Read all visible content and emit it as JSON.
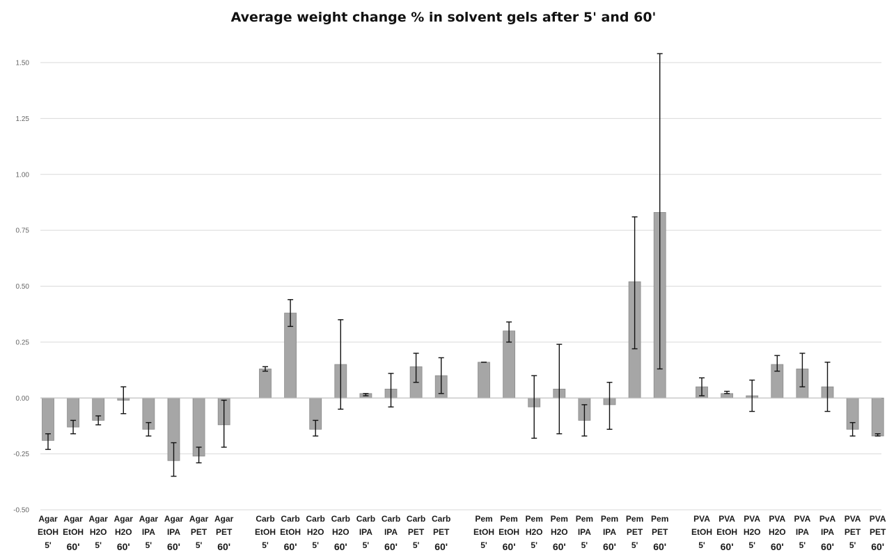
{
  "chart_data": {
    "type": "bar",
    "title": "Average weight change % in solvent gels after 5' and 60'",
    "xlabel": "",
    "ylabel": "",
    "ylim": [
      -0.5,
      1.5
    ],
    "yticks": [
      "-0.50",
      "-0.25",
      "0.00",
      "0.25",
      "0.50",
      "0.75",
      "1.00",
      "1.25",
      "1.50"
    ],
    "grid": true,
    "bar_color": "#a6a6a6",
    "categories": [
      [
        "Agar",
        "EtOH",
        "5'"
      ],
      [
        "Agar",
        "EtOH",
        "60'"
      ],
      [
        "Agar",
        "H2O",
        "5'"
      ],
      [
        "Agar",
        "H2O",
        "60'"
      ],
      [
        "Agar",
        "IPA",
        "5'"
      ],
      [
        "Agar",
        "IPA",
        "60'"
      ],
      [
        "Agar",
        "PET",
        "5'"
      ],
      [
        "Agar",
        "PET",
        "60'"
      ],
      [
        "Carb",
        "EtOH",
        "5'"
      ],
      [
        "Carb",
        "EtOH",
        "60'"
      ],
      [
        "Carb",
        "H2O",
        "5'"
      ],
      [
        "Carb",
        "H2O",
        "60'"
      ],
      [
        "Carb",
        "IPA",
        "5'"
      ],
      [
        "Carb",
        "IPA",
        "60'"
      ],
      [
        "Carb",
        "PET",
        "5'"
      ],
      [
        "Carb",
        "PET",
        "60'"
      ],
      [
        "Pem",
        "EtOH",
        "5'"
      ],
      [
        "Pem",
        "EtOH",
        "60'"
      ],
      [
        "Pem",
        "H2O",
        "5'"
      ],
      [
        "Pem",
        "H2O",
        "60'"
      ],
      [
        "Pem",
        "IPA",
        "5'"
      ],
      [
        "Pem",
        "IPA",
        "60'"
      ],
      [
        "Pem",
        "PET",
        "5'"
      ],
      [
        "Pem",
        "PET",
        "60'"
      ],
      [
        "PVA",
        "EtOH",
        "5'"
      ],
      [
        "PVA",
        "EtOH",
        "60'"
      ],
      [
        "PVA",
        "H2O",
        "5'"
      ],
      [
        "PVA",
        "H2O",
        "60'"
      ],
      [
        "PVA",
        "IPA",
        "5'"
      ],
      [
        "PvA",
        "IPA",
        "60'"
      ],
      [
        "PVA",
        "PET",
        "5'"
      ],
      [
        "PVA",
        "PET",
        "60'"
      ]
    ],
    "values": [
      -0.19,
      -0.13,
      -0.1,
      -0.01,
      -0.14,
      -0.28,
      -0.26,
      -0.12,
      0.13,
      0.38,
      -0.14,
      0.15,
      0.02,
      0.04,
      0.14,
      0.1,
      0.16,
      0.3,
      -0.04,
      0.04,
      -0.1,
      -0.03,
      0.52,
      0.83,
      0.05,
      0.02,
      0.01,
      0.15,
      0.13,
      0.05,
      -0.14,
      -0.17
    ],
    "error_low": [
      -0.23,
      -0.16,
      -0.12,
      -0.07,
      -0.17,
      -0.35,
      -0.29,
      -0.22,
      0.12,
      0.32,
      -0.17,
      -0.05,
      0.01,
      -0.04,
      0.07,
      0.02,
      0.16,
      0.25,
      -0.18,
      -0.16,
      -0.17,
      -0.14,
      0.22,
      0.13,
      0.01,
      0.02,
      -0.06,
      0.12,
      0.05,
      -0.06,
      -0.17,
      -0.17
    ],
    "error_high": [
      -0.16,
      -0.1,
      -0.08,
      0.05,
      -0.11,
      -0.2,
      -0.22,
      -0.01,
      0.14,
      0.44,
      -0.1,
      0.35,
      0.02,
      0.11,
      0.2,
      0.18,
      0.16,
      0.34,
      0.1,
      0.24,
      -0.03,
      0.07,
      0.81,
      1.54,
      0.09,
      0.03,
      0.08,
      0.19,
      0.2,
      0.16,
      -0.11,
      -0.16
    ]
  }
}
